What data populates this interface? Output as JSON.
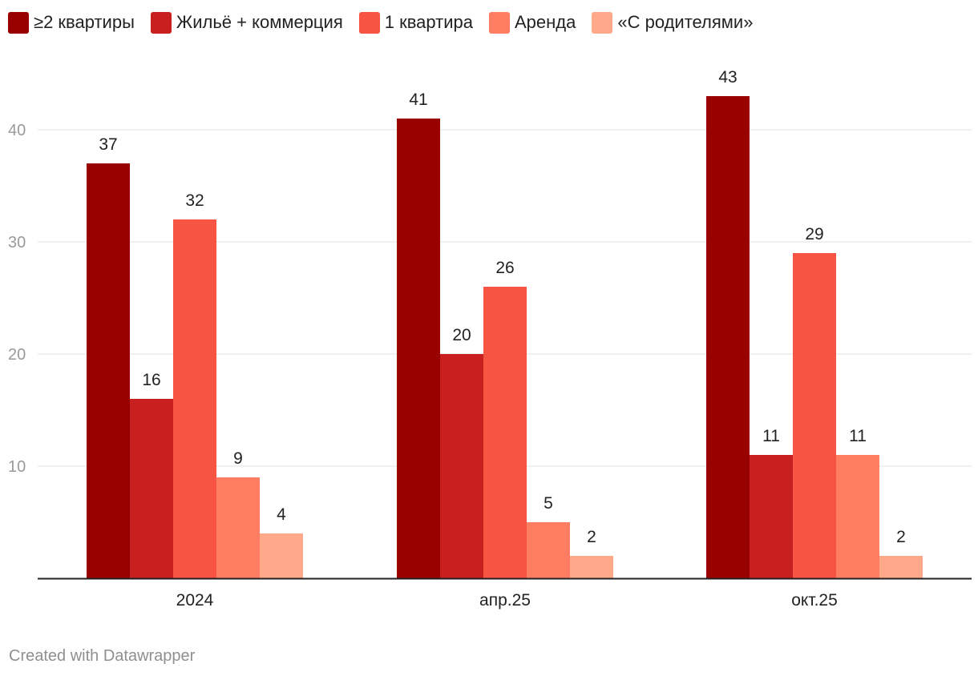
{
  "chart_data": {
    "type": "bar",
    "title": "",
    "xlabel": "",
    "ylabel": "",
    "categories": [
      "2024",
      "апр.25",
      "окт.25"
    ],
    "series": [
      {
        "name": "≥2 квартиры",
        "color": "#990000",
        "values": [
          37,
          41,
          43
        ]
      },
      {
        "name": "Жильё + коммерция",
        "color": "#c81f1f",
        "values": [
          16,
          20,
          11
        ]
      },
      {
        "name": "1 квартира",
        "color": "#f75443",
        "values": [
          32,
          26,
          29
        ]
      },
      {
        "name": "Аренда",
        "color": "#ff7d63",
        "values": [
          9,
          5,
          11
        ]
      },
      {
        "name": "«С родителями»",
        "color": "#ffa88a",
        "values": [
          4,
          2,
          2
        ]
      }
    ],
    "yticks": [
      10,
      20,
      30,
      40
    ],
    "ylim": [
      0,
      44
    ],
    "grid": true,
    "legend_position": "top-left"
  },
  "footer": {
    "credit": "Created with Datawrapper"
  }
}
